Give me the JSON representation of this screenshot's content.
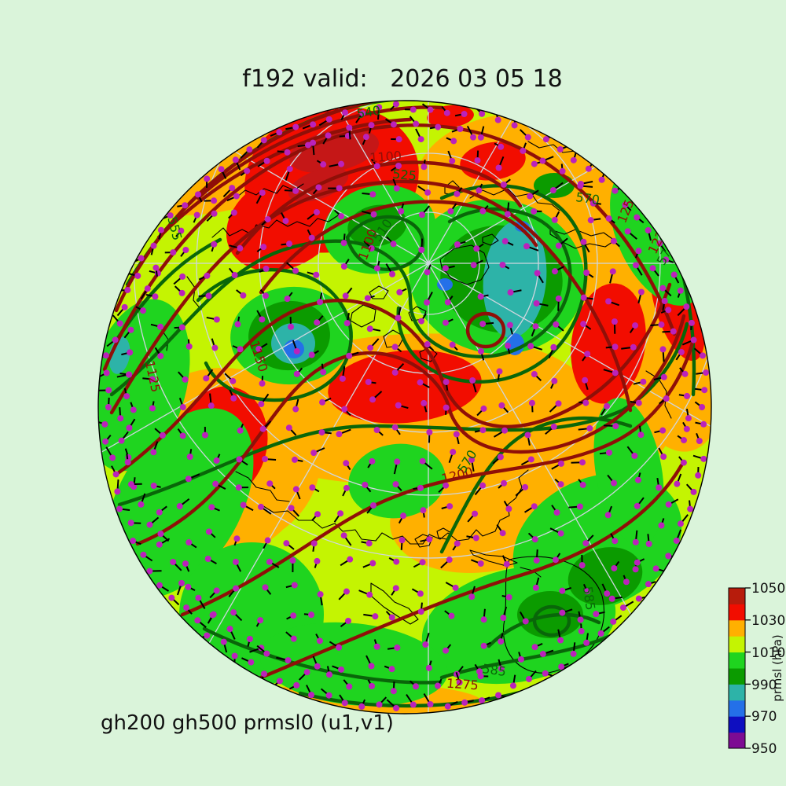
{
  "title": "f192 valid:   2026 03 05 18",
  "footer": "gh200 gh500 prmsl0 (u1,v1)",
  "colorbar": {
    "label": "prmsl (hPa)",
    "ticks": [
      "1050",
      "1030",
      "1010",
      "990",
      "970",
      "950"
    ],
    "min": 950,
    "max": 1050,
    "segments_bottom_to_top": [
      "#7d0b93",
      "#0e0ec0",
      "#2470e8",
      "#2db3a8",
      "#0b9b00",
      "#1fd41f",
      "#c4f402",
      "#ffb000",
      "#f20d00",
      "#b71c0c"
    ]
  },
  "contour_labels": {
    "gh200": [
      "1175",
      "1200",
      "1100",
      "1100",
      "1125",
      "1150",
      "1200",
      "1225",
      "1250",
      "1275"
    ],
    "gh500": [
      "540",
      "525",
      "510",
      "555",
      "570",
      "570",
      "570",
      "585",
      "585"
    ]
  },
  "colors": {
    "background": "#daf4da",
    "globe_base_fill": "#c4f402",
    "orange_fill": "#ffb000",
    "red_fill": "#f20d00",
    "dark_red_fill": "#c51717",
    "green_fill": "#1fd41f",
    "dark_green_fill": "#0b9b00",
    "teal_fill": "#2db3a8",
    "blue_fill": "#2470e8",
    "gh200_contour": "#8f0f08",
    "gh500_contour": "#096609",
    "wind_dot": "#bb22bb",
    "wind_tail": "#000000",
    "coastline": "#000000",
    "graticule": "#cfd6df",
    "globe_outline": "#000000"
  },
  "chart_data": {
    "type": "heatmap",
    "title": "f192 valid:   2026 03 05 18",
    "footer_label": "gh200 gh500 prmsl0 (u1,v1)",
    "projection": "orthographic globe, north polar view",
    "fill_field": {
      "name": "prmsl0",
      "units": "hPa",
      "levels": [
        950,
        960,
        970,
        980,
        990,
        1000,
        1010,
        1020,
        1030,
        1040,
        1050
      ],
      "colors_low_to_high": [
        "#7d0b93",
        "#0e0ec0",
        "#2470e8",
        "#2db3a8",
        "#0b9b00",
        "#1fd41f",
        "#c4f402",
        "#ffb000",
        "#f20d00",
        "#b71c0c"
      ]
    },
    "contour_fields": [
      {
        "name": "gh200",
        "line_color": "#8f0f08",
        "interval": 25,
        "labeled_values": [
          1100,
          1125,
          1150,
          1175,
          1200,
          1225,
          1250,
          1275
        ]
      },
      {
        "name": "gh500",
        "line_color": "#096609",
        "interval": 15,
        "labeled_values": [
          510,
          525,
          540,
          555,
          570,
          585
        ]
      }
    ],
    "vector_field": {
      "name": "(u1,v1)",
      "marker": "dot with tail",
      "marker_color": "#bb22bb"
    },
    "colorbar": {
      "label": "prmsl (hPa)",
      "ticks": [
        950,
        970,
        990,
        1010,
        1030,
        1050
      ],
      "position": "right"
    },
    "grid": true,
    "legend_position": "right"
  }
}
